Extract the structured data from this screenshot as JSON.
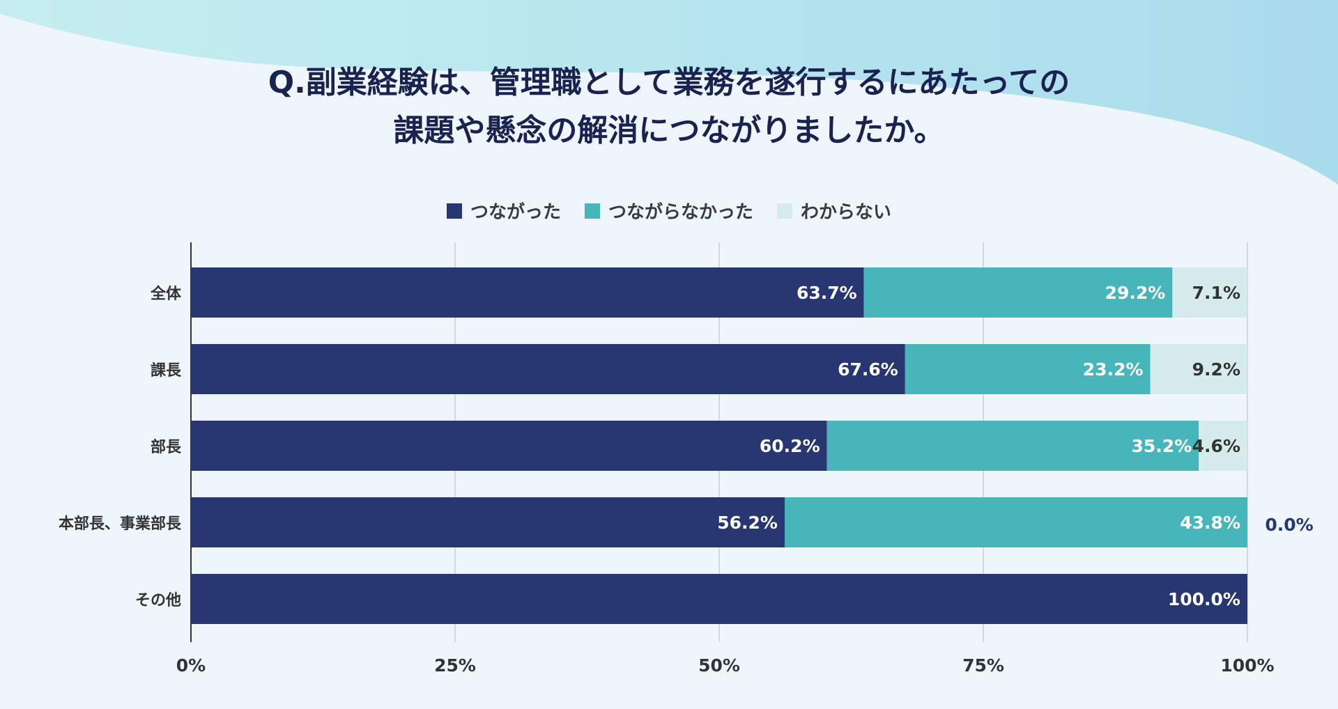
{
  "header": {
    "title_line1": "Q.副業経験は、管理職として業務を遂行するにあたっての",
    "title_line2": "課題や懸念の解消につながりましたか。"
  },
  "colors": {
    "series1": "#283772",
    "series2": "#47b6bb",
    "series3": "#d6ecec",
    "bg_light": "#eef6fb",
    "wave": "#b6e2ea"
  },
  "chart_data": {
    "type": "bar",
    "orientation": "horizontal",
    "stacked": true,
    "categories": [
      "全体",
      "課長",
      "部長",
      "本部長、事業部長",
      "その他"
    ],
    "series": [
      {
        "name": "つながった",
        "values": [
          63.7,
          67.6,
          60.2,
          56.2,
          100.0
        ],
        "labels": [
          "63.7%",
          "67.6%",
          "60.2%",
          "56.2%",
          "100.0%"
        ]
      },
      {
        "name": "つながらなかった",
        "values": [
          29.2,
          23.2,
          35.2,
          43.8,
          0
        ],
        "labels": [
          "29.2%",
          "23.2%",
          "35.2%",
          "43.8%",
          ""
        ]
      },
      {
        "name": "わからない",
        "values": [
          7.1,
          9.2,
          4.6,
          0.0,
          0
        ],
        "labels": [
          "7.1%",
          "9.2%",
          "4.6%",
          "0.0%",
          ""
        ]
      }
    ],
    "xlim": [
      0,
      100
    ],
    "xticks": [
      "0%",
      "25%",
      "50%",
      "75%",
      "100%"
    ],
    "grid": true,
    "legend_position": "top-center"
  }
}
